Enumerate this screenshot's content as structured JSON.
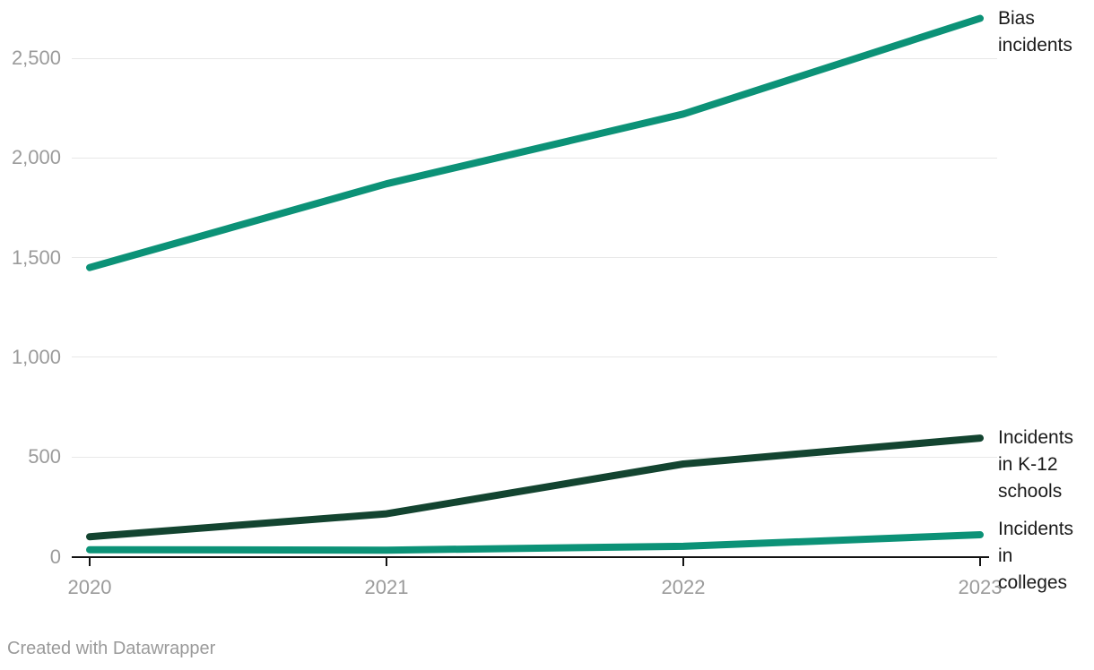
{
  "chart_data": {
    "type": "line",
    "x": [
      "2020",
      "2021",
      "2022",
      "2023"
    ],
    "x_tick_labels": [
      "2020",
      "2021",
      "2022",
      "2023"
    ],
    "y_ticks": [
      0,
      500,
      1000,
      1500,
      2000,
      2500
    ],
    "y_tick_labels": [
      "0",
      "500",
      "1,000",
      "1,500",
      "2,000",
      "2,500"
    ],
    "ylim": [
      0,
      2750
    ],
    "grid": "horizontal-only",
    "legend_position": "direct-labels-at-line-ends-right",
    "series": [
      {
        "name": "Bias incidents",
        "label": "Bias\nincidents",
        "color": "#0c9277",
        "values": [
          1450,
          1870,
          2220,
          2700
        ]
      },
      {
        "name": "Incidents in K-12 schools",
        "label": "Incidents\nin K-12\nschools",
        "color": "#134430",
        "values": [
          100,
          215,
          465,
          595
        ]
      },
      {
        "name": "Incidents in colleges",
        "label": "Incidents\nin\ncolleges",
        "color": "#0c9277",
        "values": [
          35,
          33,
          52,
          110
        ]
      }
    ]
  },
  "footer": {
    "attribution": "Created with Datawrapper"
  },
  "colors": {
    "accent_teal": "#0c9277",
    "accent_dark_green": "#134430",
    "gridline": "#e8e8e8",
    "axis": "#121212",
    "tick_label": "#9b9b9b",
    "series_label": "#1a1a1a",
    "footer_text": "#9a9a9a",
    "background": "#ffffff"
  }
}
